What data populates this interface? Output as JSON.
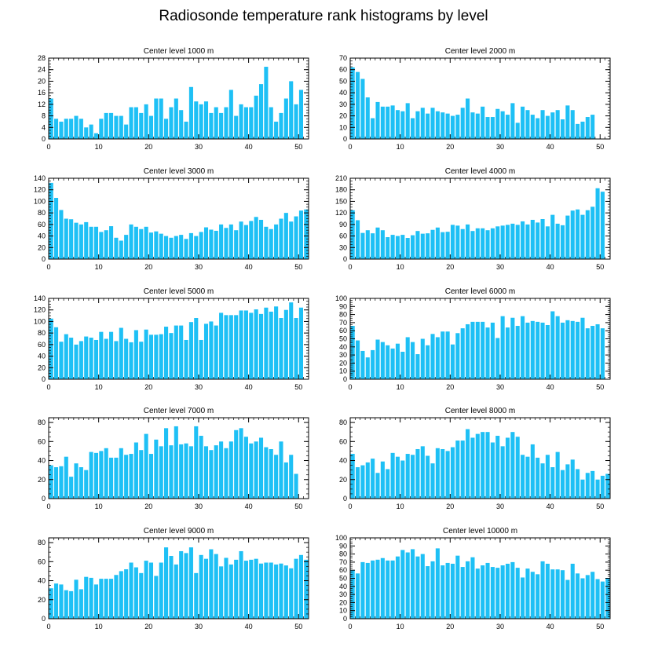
{
  "title": "Radiosonde temperature rank histograms by level",
  "style": {
    "bar_color": "#1ec0f5",
    "axis_color": "#000000"
  },
  "chart_data": [
    {
      "type": "bar",
      "title": "Center level 1000 m",
      "x": "rank index 0-51",
      "ylim": [
        0,
        28
      ],
      "yticks": [
        0,
        4,
        8,
        12,
        16,
        20,
        24,
        28
      ],
      "xticks": [
        0,
        10,
        20,
        30,
        40,
        50
      ],
      "values": [
        14,
        7,
        6,
        7,
        7,
        8,
        7,
        4,
        5,
        2,
        7,
        9,
        9,
        8,
        8,
        5,
        11,
        11,
        9,
        12,
        8,
        14,
        14,
        7,
        11,
        14,
        10,
        6,
        18,
        13,
        12,
        13,
        9,
        11,
        9,
        11,
        17,
        8,
        12,
        11,
        11,
        15,
        19,
        25,
        11,
        6,
        9,
        14,
        20,
        12,
        17
      ]
    },
    {
      "type": "bar",
      "title": "Center level 2000 m",
      "x": "rank index 0-51",
      "ylim": [
        0,
        70
      ],
      "yticks": [
        0,
        10,
        20,
        30,
        40,
        50,
        60,
        70
      ],
      "xticks": [
        0,
        10,
        20,
        30,
        40,
        50
      ],
      "values": [
        62,
        58,
        52,
        36,
        18,
        32,
        28,
        28,
        29,
        25,
        24,
        31,
        18,
        24,
        27,
        22,
        27,
        24,
        23,
        22,
        20,
        21,
        27,
        35,
        23,
        22,
        28,
        19,
        19,
        26,
        24,
        21,
        31,
        14,
        28,
        25,
        21,
        18,
        25,
        20,
        23,
        25,
        17,
        29,
        25,
        13,
        15,
        19,
        21
      ]
    },
    {
      "type": "bar",
      "title": "Center level 3000 m",
      "x": "rank index 0-51",
      "ylim": [
        0,
        140
      ],
      "yticks": [
        0,
        20,
        40,
        60,
        80,
        100,
        120,
        140
      ],
      "xticks": [
        0,
        10,
        20,
        30,
        40,
        50
      ],
      "values": [
        132,
        106,
        85,
        70,
        69,
        63,
        60,
        64,
        56,
        56,
        47,
        50,
        57,
        37,
        32,
        42,
        60,
        56,
        52,
        56,
        46,
        48,
        44,
        40,
        37,
        40,
        42,
        35,
        45,
        40,
        47,
        55,
        51,
        49,
        60,
        54,
        60,
        50,
        65,
        59,
        66,
        73,
        68,
        56,
        52,
        60,
        70,
        80,
        65,
        74,
        84,
        86
      ]
    },
    {
      "type": "bar",
      "title": "Center level 4000 m",
      "x": "rank index 0-51",
      "ylim": [
        0,
        210
      ],
      "yticks": [
        0,
        30,
        60,
        90,
        120,
        150,
        180,
        210
      ],
      "xticks": [
        0,
        10,
        20,
        30,
        40,
        50
      ],
      "values": [
        127,
        101,
        68,
        75,
        67,
        82,
        75,
        57,
        63,
        60,
        63,
        55,
        62,
        73,
        66,
        67,
        76,
        82,
        70,
        71,
        89,
        87,
        78,
        90,
        73,
        80,
        80,
        75,
        80,
        85,
        87,
        89,
        92,
        89,
        98,
        90,
        102,
        95,
        104,
        85,
        115,
        92,
        88,
        113,
        126,
        129,
        115,
        127,
        136,
        184,
        175
      ]
    },
    {
      "type": "bar",
      "title": "Center level 5000 m",
      "x": "rank index 0-51",
      "ylim": [
        0,
        140
      ],
      "yticks": [
        0,
        20,
        40,
        60,
        80,
        100,
        120,
        140
      ],
      "xticks": [
        0,
        10,
        20,
        30,
        40,
        50
      ],
      "values": [
        105,
        90,
        65,
        78,
        72,
        60,
        66,
        74,
        72,
        68,
        82,
        70,
        82,
        66,
        89,
        70,
        64,
        85,
        65,
        86,
        77,
        77,
        78,
        91,
        80,
        93,
        93,
        68,
        99,
        106,
        68,
        96,
        100,
        93,
        115,
        111,
        111,
        111,
        119,
        119,
        115,
        121,
        113,
        124,
        117,
        126,
        106,
        120,
        133,
        106,
        124
      ]
    },
    {
      "type": "bar",
      "title": "Center level 6000 m",
      "x": "rank index 0-51",
      "ylim": [
        0,
        100
      ],
      "yticks": [
        0,
        10,
        20,
        30,
        40,
        50,
        60,
        70,
        80,
        90,
        100
      ],
      "xticks": [
        0,
        10,
        20,
        30,
        40,
        50
      ],
      "values": [
        66,
        48,
        35,
        27,
        36,
        49,
        46,
        42,
        38,
        44,
        34,
        52,
        46,
        31,
        50,
        42,
        56,
        52,
        59,
        59,
        43,
        57,
        63,
        68,
        71,
        71,
        71,
        64,
        70,
        51,
        78,
        64,
        76,
        66,
        78,
        70,
        72,
        71,
        70,
        67,
        84,
        78,
        70,
        73,
        72,
        71,
        76,
        63,
        66,
        68,
        63
      ]
    },
    {
      "type": "bar",
      "title": "Center level 7000 m",
      "x": "rank index 0-51",
      "ylim": [
        0,
        85
      ],
      "yticks": [
        0,
        20,
        40,
        60,
        80
      ],
      "xticks": [
        0,
        10,
        20,
        30,
        40,
        50
      ],
      "values": [
        35,
        33,
        34,
        44,
        23,
        37,
        33,
        30,
        49,
        48,
        50,
        53,
        43,
        43,
        53,
        46,
        47,
        59,
        51,
        68,
        47,
        62,
        55,
        74,
        56,
        76,
        57,
        58,
        55,
        76,
        66,
        55,
        51,
        56,
        60,
        53,
        60,
        72,
        74,
        65,
        58,
        60,
        64,
        54,
        52,
        46,
        60,
        38,
        46,
        26
      ]
    },
    {
      "type": "bar",
      "title": "Center level 8000 m",
      "x": "rank index 0-51",
      "ylim": [
        0,
        85
      ],
      "yticks": [
        0,
        20,
        40,
        60,
        80
      ],
      "xticks": [
        0,
        10,
        20,
        30,
        40,
        50
      ],
      "values": [
        47,
        33,
        35,
        38,
        42,
        27,
        39,
        31,
        48,
        44,
        40,
        47,
        46,
        52,
        55,
        45,
        37,
        53,
        52,
        50,
        54,
        61,
        61,
        73,
        64,
        68,
        70,
        70,
        59,
        66,
        55,
        64,
        70,
        65,
        46,
        44,
        57,
        43,
        37,
        46,
        33,
        49,
        30,
        36,
        41,
        31,
        20,
        27,
        29,
        20,
        24,
        26
      ]
    },
    {
      "type": "bar",
      "title": "Center level 9000 m",
      "x": "rank index 0-51",
      "ylim": [
        0,
        85
      ],
      "yticks": [
        0,
        20,
        40,
        60,
        80
      ],
      "xticks": [
        0,
        10,
        20,
        30,
        40,
        50
      ],
      "values": [
        32,
        37,
        36,
        30,
        29,
        41,
        31,
        44,
        43,
        36,
        42,
        42,
        42,
        46,
        50,
        52,
        59,
        54,
        48,
        61,
        59,
        45,
        59,
        75,
        66,
        57,
        71,
        69,
        75,
        48,
        67,
        63,
        73,
        68,
        55,
        64,
        57,
        62,
        71,
        61,
        62,
        63,
        58,
        59,
        59,
        57,
        58,
        56,
        53,
        63,
        67,
        62
      ]
    },
    {
      "type": "bar",
      "title": "Center level 10000 m",
      "x": "rank index 0-51",
      "ylim": [
        0,
        100
      ],
      "yticks": [
        0,
        10,
        20,
        30,
        40,
        50,
        60,
        70,
        80,
        90,
        100
      ],
      "xticks": [
        0,
        10,
        20,
        30,
        40,
        50
      ],
      "values": [
        60,
        56,
        70,
        69,
        72,
        73,
        75,
        72,
        72,
        77,
        85,
        82,
        86,
        77,
        80,
        65,
        71,
        87,
        66,
        69,
        68,
        78,
        64,
        71,
        76,
        62,
        66,
        69,
        64,
        63,
        66,
        68,
        70,
        63,
        51,
        62,
        58,
        55,
        71,
        68,
        61,
        61,
        60,
        48,
        68,
        56,
        50,
        54,
        58,
        49,
        46,
        50
      ]
    }
  ]
}
